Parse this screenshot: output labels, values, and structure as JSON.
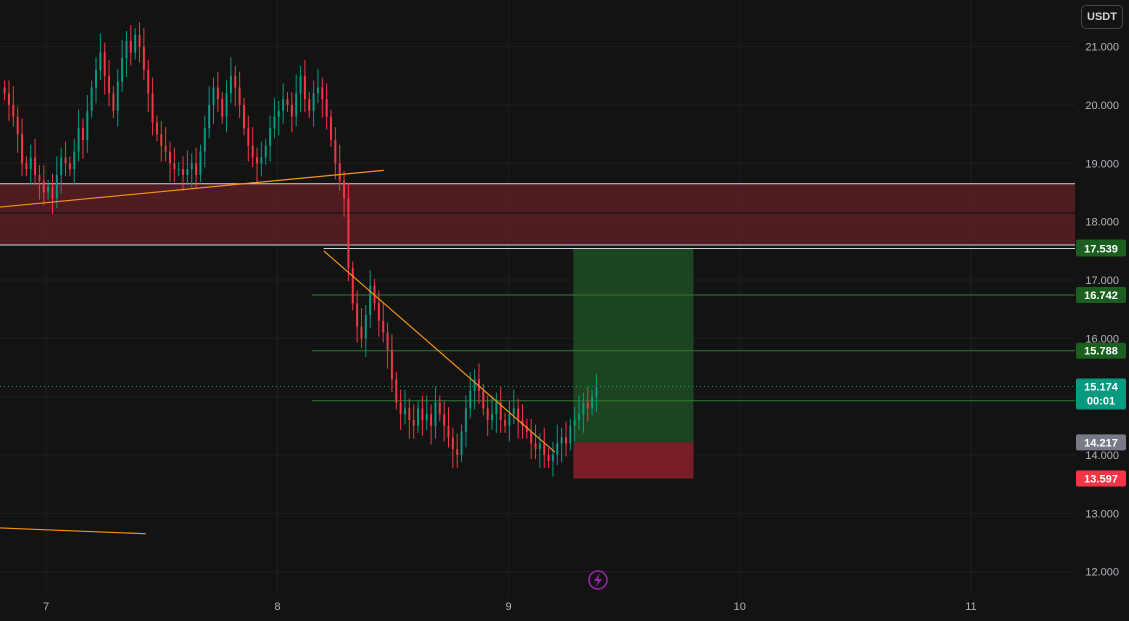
{
  "header": {
    "currency_label": "USDT"
  },
  "chart_data": {
    "type": "candlestick",
    "title": "",
    "ylim": [
      11.6,
      21.8
    ],
    "y_ticks": [
      {
        "value": 12.0,
        "label": "12.000"
      },
      {
        "value": 13.0,
        "label": "13.000"
      },
      {
        "value": 14.0,
        "label": "14.000"
      },
      {
        "value": 15.0,
        "label": "15.000"
      },
      {
        "value": 16.0,
        "label": "16.000"
      },
      {
        "value": 17.0,
        "label": "17.000"
      },
      {
        "value": 18.0,
        "label": "18.000"
      },
      {
        "value": 19.0,
        "label": "19.000"
      },
      {
        "value": 20.0,
        "label": "20.000"
      },
      {
        "value": 21.0,
        "label": "21.000"
      }
    ],
    "xlim": [
      6.8,
      11.45
    ],
    "x_ticks": [
      {
        "value": 7,
        "label": "7"
      },
      {
        "value": 8,
        "label": "8"
      },
      {
        "value": 9,
        "label": "9"
      },
      {
        "value": 10,
        "label": "10"
      },
      {
        "value": 11,
        "label": "11"
      }
    ],
    "current_price": {
      "value": 15.174,
      "label": "15.174",
      "countdown": "00:01",
      "color": "#089981"
    },
    "price_tags": [
      {
        "value": 17.558,
        "label": "17.558",
        "color": "#1b5e20"
      },
      {
        "value": 17.539,
        "label": "17.539",
        "color": "#1b5e20"
      },
      {
        "value": 16.742,
        "label": "16.742",
        "color": "#1b5e20"
      },
      {
        "value": 15.788,
        "label": "15.788",
        "color": "#1b5e20"
      },
      {
        "value": 14.93,
        "label": "14.930",
        "color": "#1b5e20"
      },
      {
        "value": 14.217,
        "label": "14.217",
        "color": "#787b86"
      },
      {
        "value": 13.597,
        "label": "13.597",
        "color": "#f23645"
      }
    ],
    "zone": {
      "y_top": 18.65,
      "y_bottom": 17.6,
      "mid": 18.15,
      "color": "#5a1e26"
    },
    "position": {
      "x_start": 9.28,
      "x_end": 9.8,
      "entry": 14.217,
      "target": 17.539,
      "stop": 13.597,
      "profit_color": "#1e4a24",
      "loss_color": "#7c1f28"
    },
    "h_lines": [
      16.742,
      15.788,
      14.93
    ],
    "trendlines": [
      {
        "x1": 6.8,
        "y1": 18.25,
        "x2": 8.46,
        "y2": 18.88,
        "color": "#f7931a"
      },
      {
        "x1": 8.2,
        "y1": 17.5,
        "x2": 9.2,
        "y2": 14.05,
        "color": "#f7931a"
      },
      {
        "x1": 6.8,
        "y1": 12.75,
        "x2": 7.43,
        "y2": 12.65,
        "color": "#f7931a"
      }
    ],
    "candles_close": [
      20.2,
      20.0,
      19.8,
      19.5,
      19.0,
      18.9,
      19.1,
      18.8,
      18.7,
      18.5,
      18.6,
      18.4,
      18.8,
      19.1,
      19.0,
      18.9,
      19.2,
      19.6,
      19.4,
      19.9,
      20.3,
      20.6,
      20.9,
      20.5,
      20.2,
      19.9,
      20.4,
      20.8,
      21.1,
      20.9,
      21.2,
      21.0,
      20.6,
      20.2,
      19.7,
      19.5,
      19.3,
      19.2,
      19.0,
      18.9,
      18.9,
      18.8,
      18.9,
      19.0,
      18.8,
      19.2,
      19.6,
      20.0,
      20.3,
      20.1,
      19.8,
      20.2,
      20.5,
      20.3,
      20.0,
      19.6,
      19.3,
      19.1,
      19.0,
      19.1,
      19.3,
      19.6,
      19.8,
      19.9,
      20.1,
      20.0,
      19.8,
      20.2,
      20.5,
      20.1,
      19.9,
      20.2,
      20.3,
      20.1,
      19.8,
      19.4,
      19.0,
      18.7,
      18.4,
      17.2,
      16.6,
      16.2,
      16.0,
      16.4,
      16.9,
      16.6,
      16.3,
      16.1,
      15.8,
      15.3,
      14.9,
      14.7,
      14.8,
      14.6,
      14.5,
      14.8,
      14.6,
      14.7,
      14.5,
      14.9,
      14.7,
      14.5,
      14.3,
      14.1,
      14.0,
      14.4,
      14.8,
      15.1,
      15.3,
      15.1,
      14.8,
      14.6,
      14.7,
      14.9,
      14.6,
      14.5,
      14.7,
      14.8,
      14.6,
      14.5,
      14.4,
      14.2,
      14.1,
      14.2,
      14.0,
      13.9,
      14.0,
      14.2,
      14.3,
      14.2,
      14.5,
      14.6,
      14.7,
      14.9,
      14.8,
      15.0,
      15.17
    ]
  }
}
